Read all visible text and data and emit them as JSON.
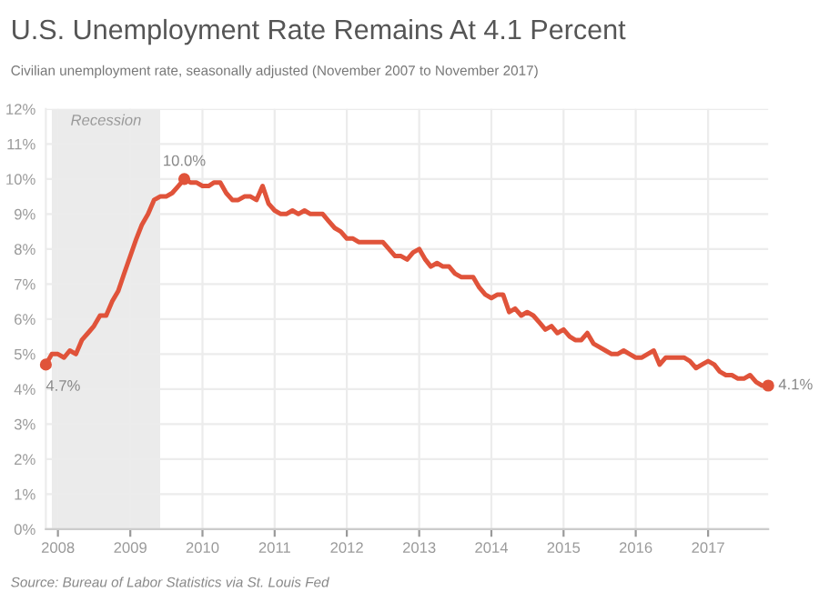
{
  "chart_data": {
    "type": "line",
    "title": "U.S. Unemployment Rate Remains At 4.1 Percent",
    "subtitle": "Civilian unemployment rate, seasonally adjusted (November 2007 to November 2017)",
    "series": [
      {
        "color": "#e0533a",
        "x": [
          "2007-11",
          "2007-12",
          "2008-01",
          "2008-02",
          "2008-03",
          "2008-04",
          "2008-05",
          "2008-06",
          "2008-07",
          "2008-08",
          "2008-09",
          "2008-10",
          "2008-11",
          "2008-12",
          "2009-01",
          "2009-02",
          "2009-03",
          "2009-04",
          "2009-05",
          "2009-06",
          "2009-07",
          "2009-08",
          "2009-09",
          "2009-10",
          "2009-11",
          "2009-12",
          "2010-01",
          "2010-02",
          "2010-03",
          "2010-04",
          "2010-05",
          "2010-06",
          "2010-07",
          "2010-08",
          "2010-09",
          "2010-10",
          "2010-11",
          "2010-12",
          "2011-01",
          "2011-02",
          "2011-03",
          "2011-04",
          "2011-05",
          "2011-06",
          "2011-07",
          "2011-08",
          "2011-09",
          "2011-10",
          "2011-11",
          "2011-12",
          "2012-01",
          "2012-02",
          "2012-03",
          "2012-04",
          "2012-05",
          "2012-06",
          "2012-07",
          "2012-08",
          "2012-09",
          "2012-10",
          "2012-11",
          "2012-12",
          "2013-01",
          "2013-02",
          "2013-03",
          "2013-04",
          "2013-05",
          "2013-06",
          "2013-07",
          "2013-08",
          "2013-09",
          "2013-10",
          "2013-11",
          "2013-12",
          "2014-01",
          "2014-02",
          "2014-03",
          "2014-04",
          "2014-05",
          "2014-06",
          "2014-07",
          "2014-08",
          "2014-09",
          "2014-10",
          "2014-11",
          "2014-12",
          "2015-01",
          "2015-02",
          "2015-03",
          "2015-04",
          "2015-05",
          "2015-06",
          "2015-07",
          "2015-08",
          "2015-09",
          "2015-10",
          "2015-11",
          "2015-12",
          "2016-01",
          "2016-02",
          "2016-03",
          "2016-04",
          "2016-05",
          "2016-06",
          "2016-07",
          "2016-08",
          "2016-09",
          "2016-10",
          "2016-11",
          "2016-12",
          "2017-01",
          "2017-02",
          "2017-03",
          "2017-04",
          "2017-05",
          "2017-06",
          "2017-07",
          "2017-08",
          "2017-09",
          "2017-10",
          "2017-11"
        ],
        "values": [
          4.7,
          5.0,
          5.0,
          4.9,
          5.1,
          5.0,
          5.4,
          5.6,
          5.8,
          6.1,
          6.1,
          6.5,
          6.8,
          7.3,
          7.8,
          8.3,
          8.7,
          9.0,
          9.4,
          9.5,
          9.5,
          9.6,
          9.8,
          10.0,
          9.9,
          9.9,
          9.8,
          9.8,
          9.9,
          9.9,
          9.6,
          9.4,
          9.4,
          9.5,
          9.5,
          9.4,
          9.8,
          9.3,
          9.1,
          9.0,
          9.0,
          9.1,
          9.0,
          9.1,
          9.0,
          9.0,
          9.0,
          8.8,
          8.6,
          8.5,
          8.3,
          8.3,
          8.2,
          8.2,
          8.2,
          8.2,
          8.2,
          8.0,
          7.8,
          7.8,
          7.7,
          7.9,
          8.0,
          7.7,
          7.5,
          7.6,
          7.5,
          7.5,
          7.3,
          7.2,
          7.2,
          7.2,
          6.9,
          6.7,
          6.6,
          6.7,
          6.7,
          6.2,
          6.3,
          6.1,
          6.2,
          6.1,
          5.9,
          5.7,
          5.8,
          5.6,
          5.7,
          5.5,
          5.4,
          5.4,
          5.6,
          5.3,
          5.2,
          5.1,
          5.0,
          5.0,
          5.1,
          5.0,
          4.9,
          4.9,
          5.0,
          5.1,
          4.7,
          4.9,
          4.9,
          4.9,
          4.9,
          4.8,
          4.6,
          4.7,
          4.8,
          4.7,
          4.5,
          4.4,
          4.4,
          4.3,
          4.3,
          4.4,
          4.2,
          4.1,
          4.1
        ]
      },
      {
        "type": "scatter",
        "color": "#e0533a",
        "marker": "circle",
        "x": [
          "2007-11",
          "2009-10",
          "2017-11"
        ],
        "values": [
          4.7,
          10.0,
          4.1
        ]
      }
    ],
    "xlim": [
      "2007-11",
      "2017-11"
    ],
    "xticks": [
      "2008",
      "2009",
      "2010",
      "2011",
      "2012",
      "2013",
      "2014",
      "2015",
      "2016",
      "2017"
    ],
    "ylim": [
      0,
      12
    ],
    "yticks": [
      {
        "value": 0,
        "label": "0%"
      },
      {
        "value": 1,
        "label": "1%"
      },
      {
        "value": 2,
        "label": "2%"
      },
      {
        "value": 3,
        "label": "3%"
      },
      {
        "value": 4,
        "label": "4%"
      },
      {
        "value": 5,
        "label": "5%"
      },
      {
        "value": 6,
        "label": "6%"
      },
      {
        "value": 7,
        "label": "7%"
      },
      {
        "value": 8,
        "label": "8%"
      },
      {
        "value": 9,
        "label": "9%"
      },
      {
        "value": 10,
        "label": "10%"
      },
      {
        "value": 11,
        "label": "11%"
      },
      {
        "value": 12,
        "label": "12%"
      }
    ],
    "bands": [
      {
        "axis": "x",
        "from": "2007-12",
        "to": "2009-06",
        "label": "Recession",
        "color": "#ebebeb"
      }
    ],
    "annotations": [
      {
        "text": "4.7%",
        "x": "2007-11",
        "y": 4.7
      },
      {
        "text": "10.0%",
        "x": "2009-10",
        "y": 10.0
      },
      {
        "text": "4.1%",
        "x": "2017-11",
        "y": 4.1
      },
      "Source: Bureau of Labor Statistics via St. Louis Fed"
    ],
    "grid": true,
    "marker": "none",
    "line_style": "solid",
    "legend": false
  }
}
